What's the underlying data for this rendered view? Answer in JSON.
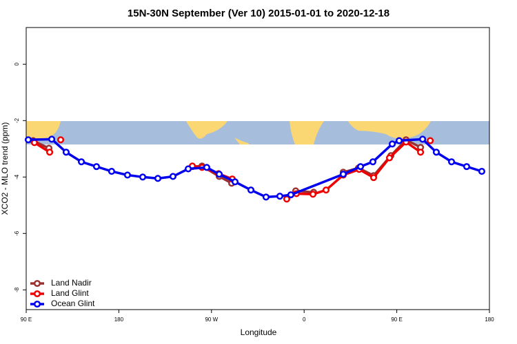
{
  "chart_data": {
    "type": "line",
    "title": "15N-30N September (Ver 10)   2015-01-01 to 2020-12-18",
    "x_label": "Longitude",
    "y_label": "XCO2 - MLO trend (ppm)",
    "xlim": [
      90,
      540
    ],
    "ylim": [
      -8.7,
      1.3
    ],
    "xticks": [
      {
        "value": 90,
        "label": "90 E"
      },
      {
        "value": 180,
        "label": "180"
      },
      {
        "value": 270,
        "label": "90 W"
      },
      {
        "value": 360,
        "label": "0"
      },
      {
        "value": 450,
        "label": "90 E"
      },
      {
        "value": 540,
        "label": "180"
      }
    ],
    "yticks": [
      0,
      -2,
      -4,
      -6,
      -8
    ],
    "legend": "bottom-left",
    "series": [
      {
        "name": "Land Nadir",
        "color": "#993333",
        "x": [
          96.7,
          112.1,
          180,
          251.4,
          260.8,
          277.5,
          289.6,
          320,
          351.8,
          369.2,
          385,
          398.0,
          412.8,
          427.5,
          444.3,
          459.0,
          473.1
        ],
        "values": [
          -2.71,
          -2.98,
          null,
          -3.63,
          -3.61,
          -3.98,
          -4.22,
          null,
          -4.49,
          -4.54,
          null,
          -3.83,
          -3.68,
          -3.95,
          -3.24,
          -2.68,
          -2.95
        ]
      },
      {
        "name": "Land Glint",
        "color": "#ee0000",
        "x": [
          98.0,
          112.8,
          118,
          123.5,
          200,
          251.4,
          260.8,
          276.8,
          290.2,
          320,
          343.1,
          352.5,
          368.6,
          381.3,
          398.0,
          413.5,
          427.5,
          442.9,
          459.0,
          473.1,
          478,
          482.5
        ],
        "values": [
          -2.78,
          -3.12,
          null,
          -2.68,
          null,
          -3.61,
          -3.66,
          -3.88,
          -4.07,
          null,
          -4.78,
          -4.59,
          -4.61,
          -4.46,
          -3.93,
          -3.73,
          -4.02,
          -3.32,
          -2.76,
          -3.12,
          null,
          -2.71
        ]
      },
      {
        "name": "Ocean Glint",
        "color": "#0000ee",
        "x": [
          92.0,
          114.8,
          128.8,
          143.6,
          158.3,
          173.0,
          188.4,
          203.2,
          217.9,
          232.6,
          247.4,
          265.4,
          277.5,
          292.9,
          308.3,
          323.0,
          336.4,
          347.1,
          398.0,
          414.8,
          426.8,
          445.6,
          452.3,
          475.1,
          488.4,
          503.2,
          517.9,
          532.6
        ],
        "values": [
          -2.68,
          -2.66,
          -3.12,
          -3.46,
          -3.63,
          -3.8,
          -3.93,
          -4.0,
          -4.05,
          -3.98,
          -3.71,
          -3.66,
          -3.9,
          -4.17,
          -4.46,
          -4.71,
          -4.68,
          -4.63,
          -3.9,
          -3.63,
          -3.46,
          -2.83,
          -2.71,
          -2.66,
          -3.12,
          -3.46,
          -3.63,
          -3.8
        ]
      }
    ]
  }
}
